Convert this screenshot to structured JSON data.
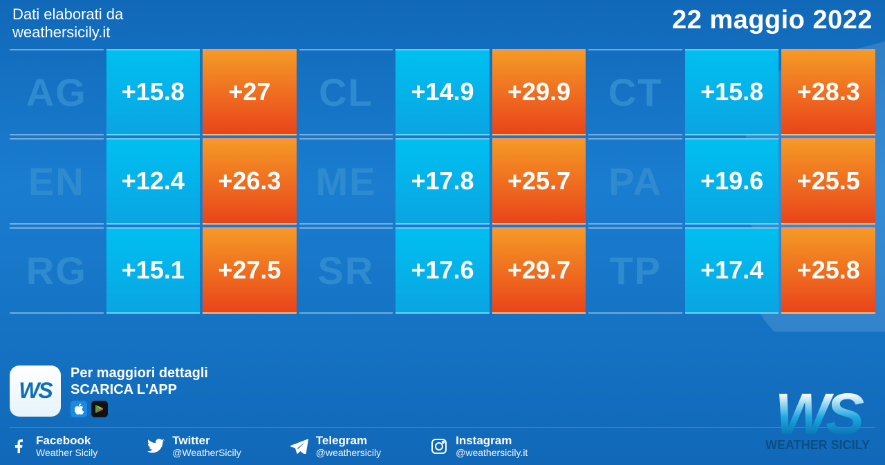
{
  "header": {
    "source_label": "Dati elaborati da",
    "source_site": "weathersicily.it",
    "date": "22 maggio 2022"
  },
  "colors": {
    "province_text": "#2f8bd0",
    "min_bg_top": "#00bff0",
    "min_bg_bottom": "#0aa5e2",
    "max_bg_top": "#f59a26",
    "max_bg_bottom": "#e9441a",
    "page_bg_top": "#1168b8",
    "page_bg_mid": "#1a7dd0",
    "text_white": "#ffffff"
  },
  "grid": {
    "cell_font_size_value": 36,
    "cell_font_size_province": 56,
    "rows": [
      [
        {
          "province": "AG",
          "min": "+15.8",
          "max": "+27"
        },
        {
          "province": "CL",
          "min": "+14.9",
          "max": "+29.9"
        },
        {
          "province": "CT",
          "min": "+15.8",
          "max": "+28.3"
        }
      ],
      [
        {
          "province": "EN",
          "min": "+12.4",
          "max": "+26.3"
        },
        {
          "province": "ME",
          "min": "+17.8",
          "max": "+25.7"
        },
        {
          "province": "PA",
          "min": "+19.6",
          "max": "+25.5"
        }
      ],
      [
        {
          "province": "RG",
          "min": "+15.1",
          "max": "+27.5"
        },
        {
          "province": "SR",
          "min": "+17.6",
          "max": "+29.7"
        },
        {
          "province": "TP",
          "min": "+17.4",
          "max": "+25.8"
        }
      ]
    ]
  },
  "app": {
    "line1": "Per maggiori dettagli",
    "line2": "SCARICA L'APP",
    "icon_text": "WS",
    "icon_sub": "WEATHER SICILY"
  },
  "socials": [
    {
      "icon": "facebook",
      "name": "Facebook",
      "handle": "Weather Sicily"
    },
    {
      "icon": "twitter",
      "name": "Twitter",
      "handle": "@WeatherSicily"
    },
    {
      "icon": "telegram",
      "name": "Telegram",
      "handle": "@weathersicily"
    },
    {
      "icon": "instagram",
      "name": "Instagram",
      "handle": "@weathersicily.it"
    }
  ],
  "logo": {
    "text": "WS",
    "sub": "WEATHER SICILY"
  }
}
